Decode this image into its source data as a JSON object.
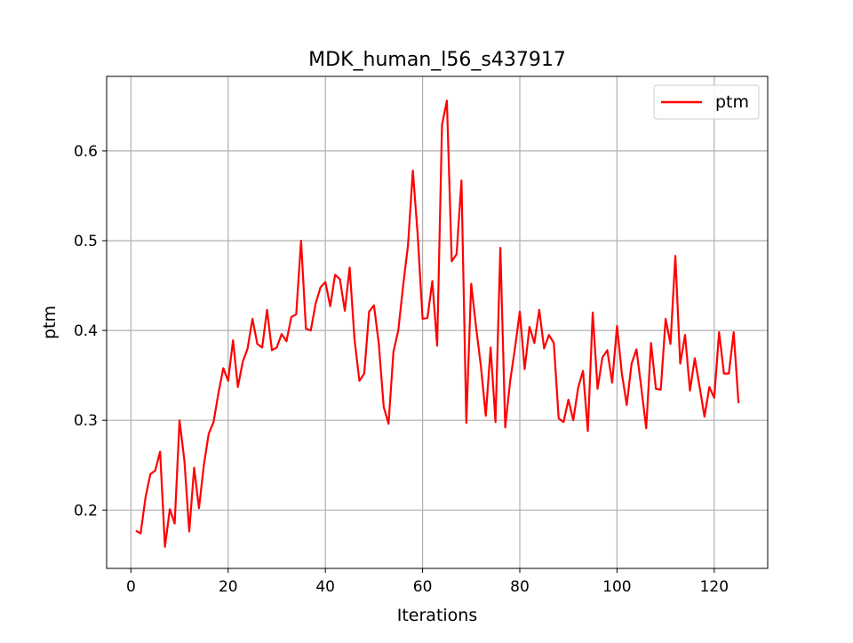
{
  "chart_data": {
    "type": "line",
    "title": "MDK_human_l56_s437917",
    "xlabel": "Iterations",
    "ylabel": "ptm",
    "xlim": [
      -5,
      131
    ],
    "ylim": [
      0.135,
      0.683
    ],
    "xticks": [
      0,
      20,
      40,
      60,
      80,
      100,
      120
    ],
    "yticks": [
      0.2,
      0.3,
      0.4,
      0.5,
      0.6
    ],
    "xtick_labels": [
      "0",
      "20",
      "40",
      "60",
      "80",
      "100",
      "120"
    ],
    "ytick_labels": [
      "0.2",
      "0.3",
      "0.4",
      "0.5",
      "0.6"
    ],
    "grid": true,
    "legend": "top-right",
    "series": [
      {
        "name": "ptm",
        "color": "#ff0000",
        "x": [
          1,
          2,
          3,
          4,
          5,
          6,
          7,
          8,
          9,
          10,
          11,
          12,
          13,
          14,
          15,
          16,
          17,
          18,
          19,
          20,
          21,
          22,
          23,
          24,
          25,
          26,
          27,
          28,
          29,
          30,
          31,
          32,
          33,
          34,
          35,
          36,
          37,
          38,
          39,
          40,
          41,
          42,
          43,
          44,
          45,
          46,
          47,
          48,
          49,
          50,
          51,
          52,
          53,
          54,
          55,
          56,
          57,
          58,
          59,
          60,
          61,
          62,
          63,
          64,
          65,
          66,
          67,
          68,
          69,
          70,
          71,
          72,
          73,
          74,
          75,
          76,
          77,
          78,
          79,
          80,
          81,
          82,
          83,
          84,
          85,
          86,
          87,
          88,
          89,
          90,
          91,
          92,
          93,
          94,
          95,
          96,
          97,
          98,
          99,
          100,
          101,
          102,
          103,
          104,
          105,
          106,
          107,
          108,
          109,
          110,
          111,
          112,
          113,
          114,
          115,
          116,
          117,
          118,
          119,
          120,
          121,
          122,
          123,
          124,
          125
        ],
        "values": [
          0.177,
          0.174,
          0.214,
          0.24,
          0.244,
          0.265,
          0.159,
          0.201,
          0.185,
          0.3,
          0.255,
          0.176,
          0.247,
          0.202,
          0.25,
          0.285,
          0.298,
          0.33,
          0.358,
          0.344,
          0.389,
          0.337,
          0.365,
          0.38,
          0.413,
          0.385,
          0.381,
          0.423,
          0.378,
          0.381,
          0.396,
          0.388,
          0.415,
          0.418,
          0.5,
          0.402,
          0.4,
          0.43,
          0.448,
          0.454,
          0.427,
          0.462,
          0.457,
          0.422,
          0.47,
          0.39,
          0.344,
          0.352,
          0.421,
          0.428,
          0.385,
          0.315,
          0.296,
          0.376,
          0.4,
          0.45,
          0.495,
          0.578,
          0.506,
          0.413,
          0.414,
          0.455,
          0.383,
          0.629,
          0.656,
          0.477,
          0.485,
          0.567,
          0.297,
          0.452,
          0.404,
          0.36,
          0.305,
          0.381,
          0.298,
          0.492,
          0.292,
          0.343,
          0.38,
          0.421,
          0.357,
          0.404,
          0.386,
          0.423,
          0.38,
          0.395,
          0.386,
          0.302,
          0.298,
          0.323,
          0.3,
          0.336,
          0.355,
          0.288,
          0.42,
          0.335,
          0.37,
          0.378,
          0.342,
          0.405,
          0.352,
          0.317,
          0.363,
          0.379,
          0.336,
          0.291,
          0.386,
          0.335,
          0.334,
          0.413,
          0.385,
          0.483,
          0.363,
          0.395,
          0.333,
          0.369,
          0.337,
          0.304,
          0.337,
          0.325,
          0.398,
          0.352,
          0.352,
          0.398,
          0.319
        ]
      }
    ]
  }
}
